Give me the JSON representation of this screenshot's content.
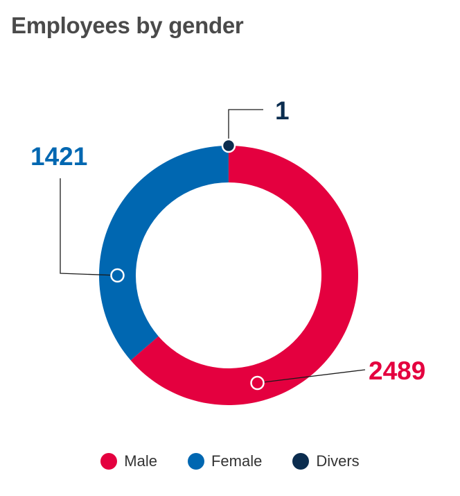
{
  "chart_data": {
    "type": "pie",
    "title": "Employees by gender",
    "variant": "donut",
    "slices": [
      {
        "label": "Male",
        "value": 2489,
        "color": "#e4003f"
      },
      {
        "label": "Female",
        "value": 1421,
        "color": "#0067b1"
      },
      {
        "label": "Divers",
        "value": 1,
        "color": "#0b2d4f"
      }
    ],
    "data_labels": [
      "2489",
      "1421",
      "1"
    ],
    "legend": [
      "Male",
      "Female",
      "Divers"
    ],
    "legend_position": "bottom"
  }
}
